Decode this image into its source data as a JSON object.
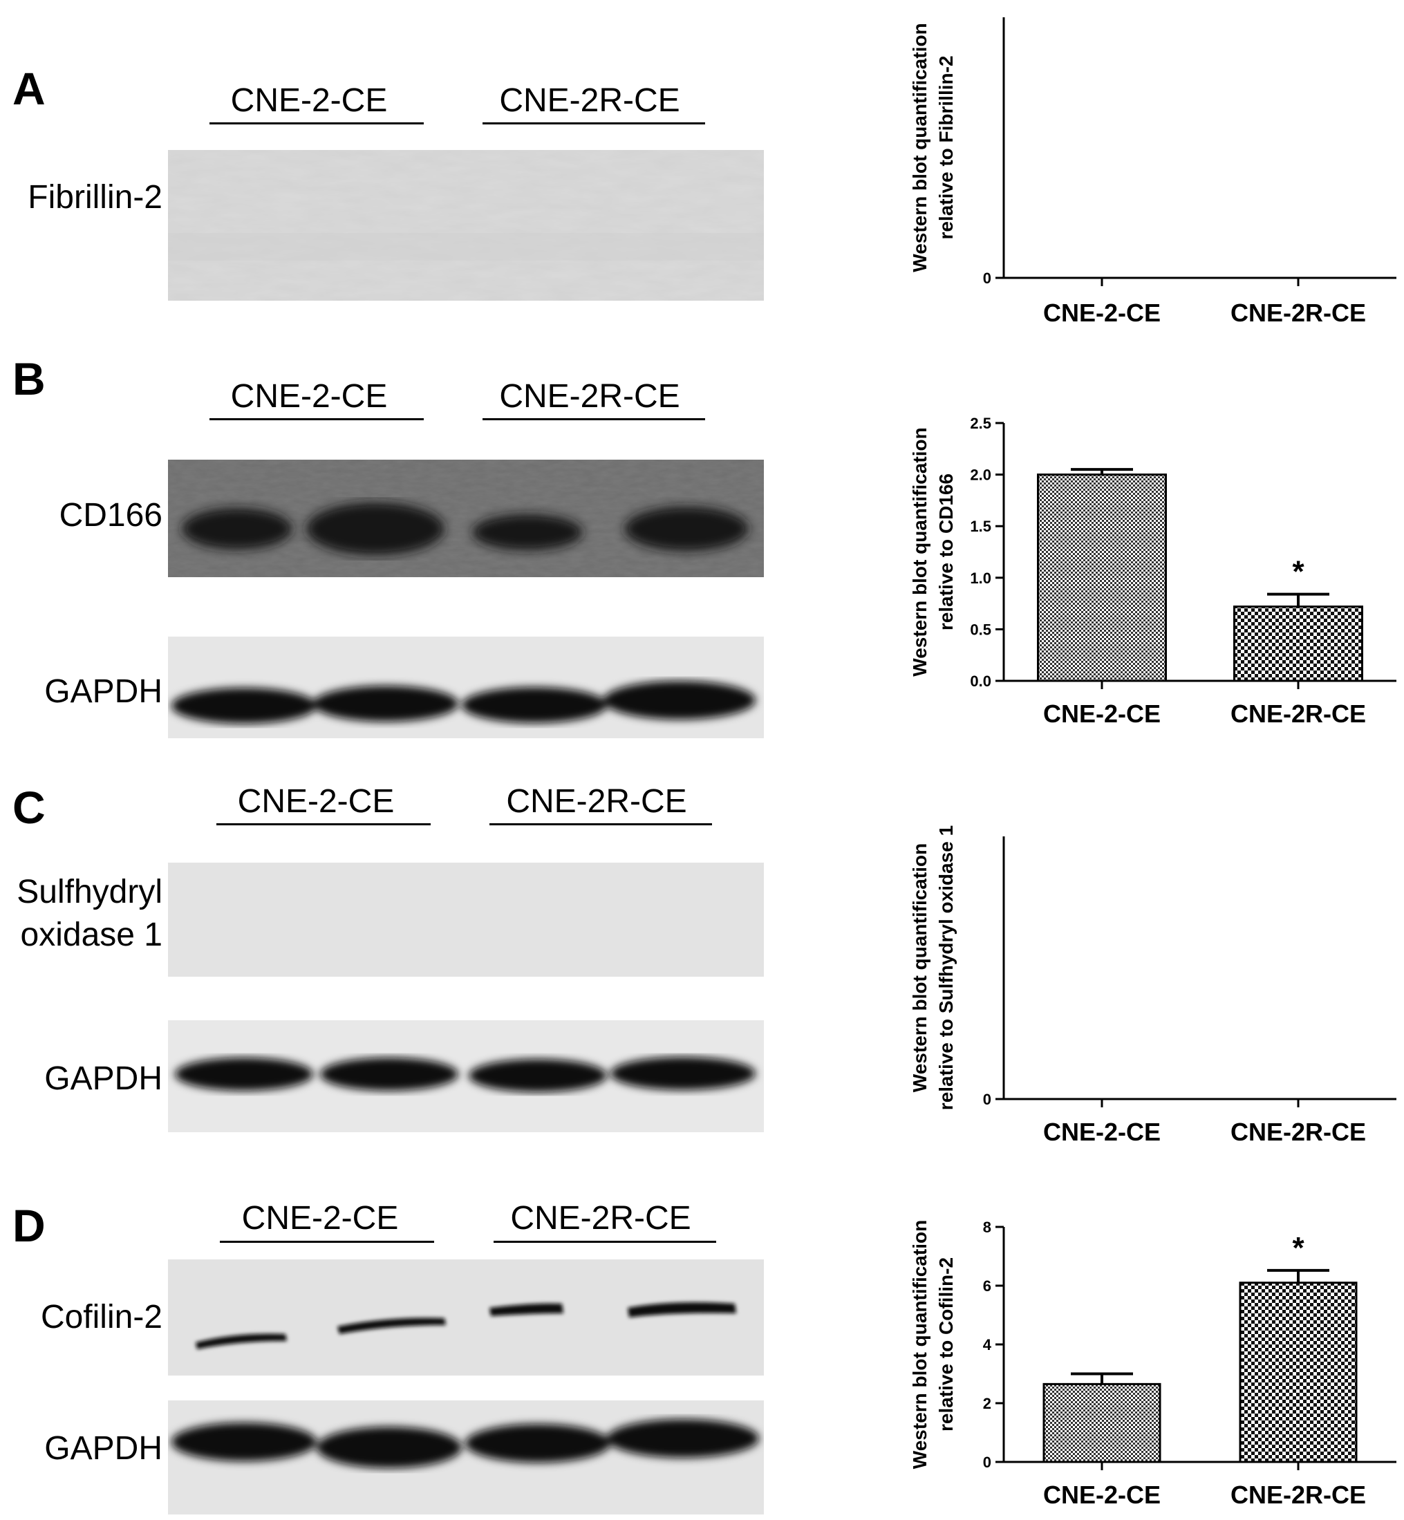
{
  "panels": [
    {
      "letter": "A",
      "groups": [
        "CNE-2-CE",
        "CNE-2R-CE"
      ],
      "blots": [
        {
          "label": "Fibrillin-2"
        }
      ],
      "chart_index": 0
    },
    {
      "letter": "B",
      "groups": [
        "CNE-2-CE",
        "CNE-2R-CE"
      ],
      "blots": [
        {
          "label": "CD166"
        },
        {
          "label": "GAPDH"
        }
      ],
      "chart_index": 1
    },
    {
      "letter": "C",
      "groups": [
        "CNE-2-CE",
        "CNE-2R-CE"
      ],
      "blots": [
        {
          "label": "Sulfhydryl oxidase 1"
        },
        {
          "label": "GAPDH"
        }
      ],
      "chart_index": 2
    },
    {
      "letter": "D",
      "groups": [
        "CNE-2-CE",
        "CNE-2R-CE"
      ],
      "blots": [
        {
          "label": "Cofilin-2"
        },
        {
          "label": "GAPDH"
        }
      ],
      "chart_index": 3
    }
  ],
  "chart_data": [
    {
      "type": "bar",
      "categories": [
        "CNE-2-CE",
        "CNE-2R-CE"
      ],
      "values": [
        0,
        0
      ],
      "errors": [
        0,
        0
      ],
      "significance": [
        "",
        ""
      ],
      "ylabel": [
        "Western blot quantification",
        "relative to Fibrillin-2"
      ],
      "yticks": [
        0
      ],
      "ylim": [
        0,
        1
      ],
      "grid": false
    },
    {
      "type": "bar",
      "categories": [
        "CNE-2-CE",
        "CNE-2R-CE"
      ],
      "values": [
        2.0,
        0.72
      ],
      "errors": [
        0.05,
        0.12
      ],
      "significance": [
        "",
        "*"
      ],
      "ylabel": [
        "Western blot quantification",
        "relative to CD166"
      ],
      "yticks": [
        0.0,
        0.5,
        1.0,
        1.5,
        2.0,
        2.5
      ],
      "ytick_labels": [
        "0.0",
        "0.5",
        "1.0",
        "1.5",
        "2.0",
        "2.5"
      ],
      "ylim": [
        0,
        2.5
      ],
      "grid": false
    },
    {
      "type": "bar",
      "categories": [
        "CNE-2-CE",
        "CNE-2R-CE"
      ],
      "values": [
        0,
        0
      ],
      "errors": [
        0,
        0
      ],
      "significance": [
        "",
        ""
      ],
      "ylabel": [
        "Western blot quantification",
        "relative to Sulfhydryl oxidase 1"
      ],
      "yticks": [
        0
      ],
      "ylim": [
        0,
        1
      ],
      "grid": false
    },
    {
      "type": "bar",
      "categories": [
        "CNE-2-CE",
        "CNE-2R-CE"
      ],
      "values": [
        2.65,
        6.1
      ],
      "errors": [
        0.35,
        0.42
      ],
      "significance": [
        "",
        "*"
      ],
      "ylabel": [
        "Western blot quantification",
        "relative to Cofilin-2"
      ],
      "yticks": [
        0,
        2,
        4,
        6,
        8
      ],
      "ytick_labels": [
        "0",
        "2",
        "4",
        "6",
        "8"
      ],
      "ylim": [
        0,
        8
      ],
      "grid": false
    }
  ]
}
